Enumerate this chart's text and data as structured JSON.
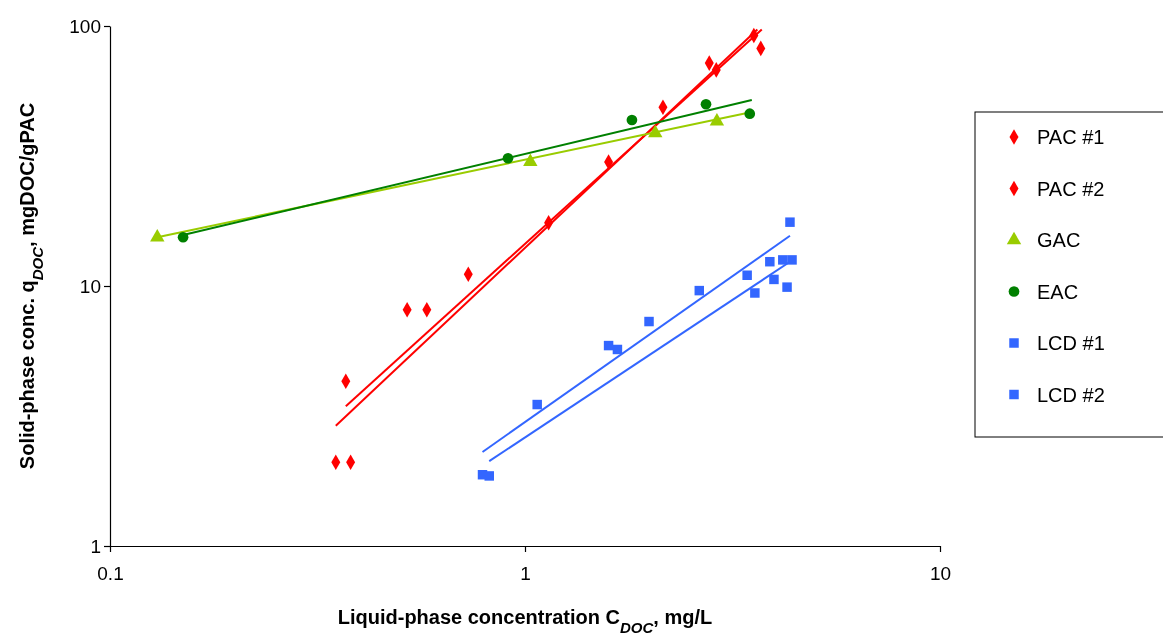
{
  "chart_data": {
    "type": "scatter",
    "xlabel": "Liquid-phase concentration C$_{DOC}$, mg/L",
    "ylabel": "Solid-phase conc. q$_{DOC}$, mgDOC/gPAC",
    "log": "xy",
    "xlim": [
      0.1,
      10
    ],
    "ylim": [
      1,
      100
    ],
    "xticks": [
      0.1,
      1,
      10
    ],
    "yticks": [
      1,
      10,
      100
    ],
    "legend": "right",
    "grid": false,
    "series": [
      {
        "name": "PAC #1",
        "color": "#ff0000",
        "marker": "diamond",
        "x": [
          0.35,
          0.52,
          2.78,
          3.56
        ],
        "values": [
          2.1,
          8.1,
          72,
          92
        ]
      },
      {
        "name": "PAC #2",
        "color": "#ff0000",
        "marker": "diamond",
        "x": [
          0.37,
          0.38,
          0.58,
          0.73,
          1.14,
          1.59,
          2.15,
          2.89,
          3.7
        ],
        "values": [
          4.3,
          2.1,
          8.1,
          11.1,
          17.5,
          30,
          48.7,
          67.8,
          82
        ]
      },
      {
        "name": "GAC",
        "color": "#99cc00",
        "marker": "triangle",
        "x": [
          0.13,
          1.03,
          2.06,
          2.9
        ],
        "values": [
          15.4,
          30,
          38.7,
          43
        ]
      },
      {
        "name": "EAC",
        "color": "#008000",
        "marker": "circle",
        "x": [
          0.15,
          0.91,
          1.81,
          2.73,
          3.48
        ],
        "values": [
          15.4,
          31,
          43.5,
          50,
          46
        ]
      },
      {
        "name": "LCD #1",
        "color": "#3366ff",
        "marker": "square",
        "x": [
          0.79,
          1.07,
          1.59,
          1.99,
          2.63,
          3.43,
          3.89,
          4.18,
          4.35
        ],
        "values": [
          1.88,
          3.5,
          5.9,
          7.3,
          9.6,
          11,
          12.4,
          12.6,
          17.6
        ]
      },
      {
        "name": "LCD #2",
        "color": "#3366ff",
        "marker": "square",
        "x": [
          0.82,
          1.67,
          3.58,
          3.98,
          4.28,
          4.4
        ],
        "values": [
          1.86,
          5.7,
          9.4,
          10.6,
          9.9,
          12.6
        ]
      },
      {
        "type": "line",
        "color": "#ff0000",
        "x": [
          0.35,
          3.63
        ],
        "values": [
          2.9,
          97
        ]
      },
      {
        "type": "line",
        "color": "#ff0000",
        "x": [
          0.37,
          3.72
        ],
        "values": [
          3.45,
          97
        ]
      },
      {
        "type": "line",
        "color": "#99cc00",
        "x": [
          0.13,
          3.52
        ],
        "values": [
          15.4,
          46.7
        ]
      },
      {
        "type": "line",
        "color": "#008000",
        "x": [
          0.15,
          3.52
        ],
        "values": [
          15.7,
          51.9
        ]
      },
      {
        "type": "line",
        "color": "#3366ff",
        "x": [
          0.79,
          4.35
        ],
        "values": [
          2.3,
          15.6
        ]
      },
      {
        "type": "line",
        "color": "#3366ff",
        "x": [
          0.82,
          4.35
        ],
        "values": [
          2.12,
          12.4
        ]
      }
    ]
  }
}
